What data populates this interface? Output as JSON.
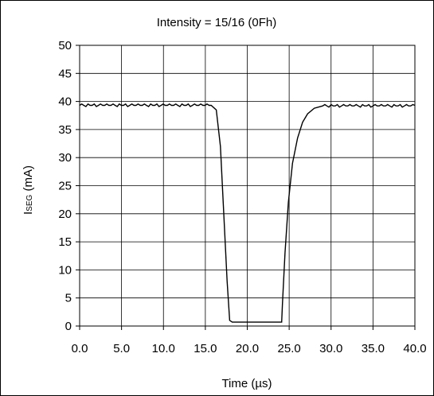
{
  "chart_data": {
    "type": "line",
    "title": "Intensity = 15/16 (0Fh)",
    "xlabel": "Time (µs)",
    "ylabel": {
      "main": "I",
      "subscript": "SEG",
      "suffix": " (mA)"
    },
    "xlim": [
      0,
      40
    ],
    "ylim": [
      0,
      50
    ],
    "xticks": [
      "0.0",
      "5.0",
      "10.0",
      "15.0",
      "20.0",
      "25.0",
      "30.0",
      "35.0",
      "40.0"
    ],
    "yticks": [
      "0",
      "5",
      "10",
      "15",
      "20",
      "25",
      "30",
      "35",
      "40",
      "45",
      "50"
    ],
    "grid": true,
    "series": [
      {
        "color": "#000000",
        "x": [
          0,
          15.7,
          16.3,
          16.8,
          17.2,
          17.6,
          17.9,
          18.2,
          24.1,
          24.2,
          24.5,
          24.9,
          25.4,
          26.0,
          26.6,
          27.2,
          28.0,
          29.0,
          40
        ],
        "y": [
          39.3,
          39.3,
          38.5,
          32.0,
          20.0,
          8.0,
          1.0,
          0.7,
          0.7,
          4.0,
          13.0,
          22.0,
          29.0,
          33.5,
          36.3,
          37.8,
          38.8,
          39.2,
          39.3
        ]
      }
    ]
  }
}
